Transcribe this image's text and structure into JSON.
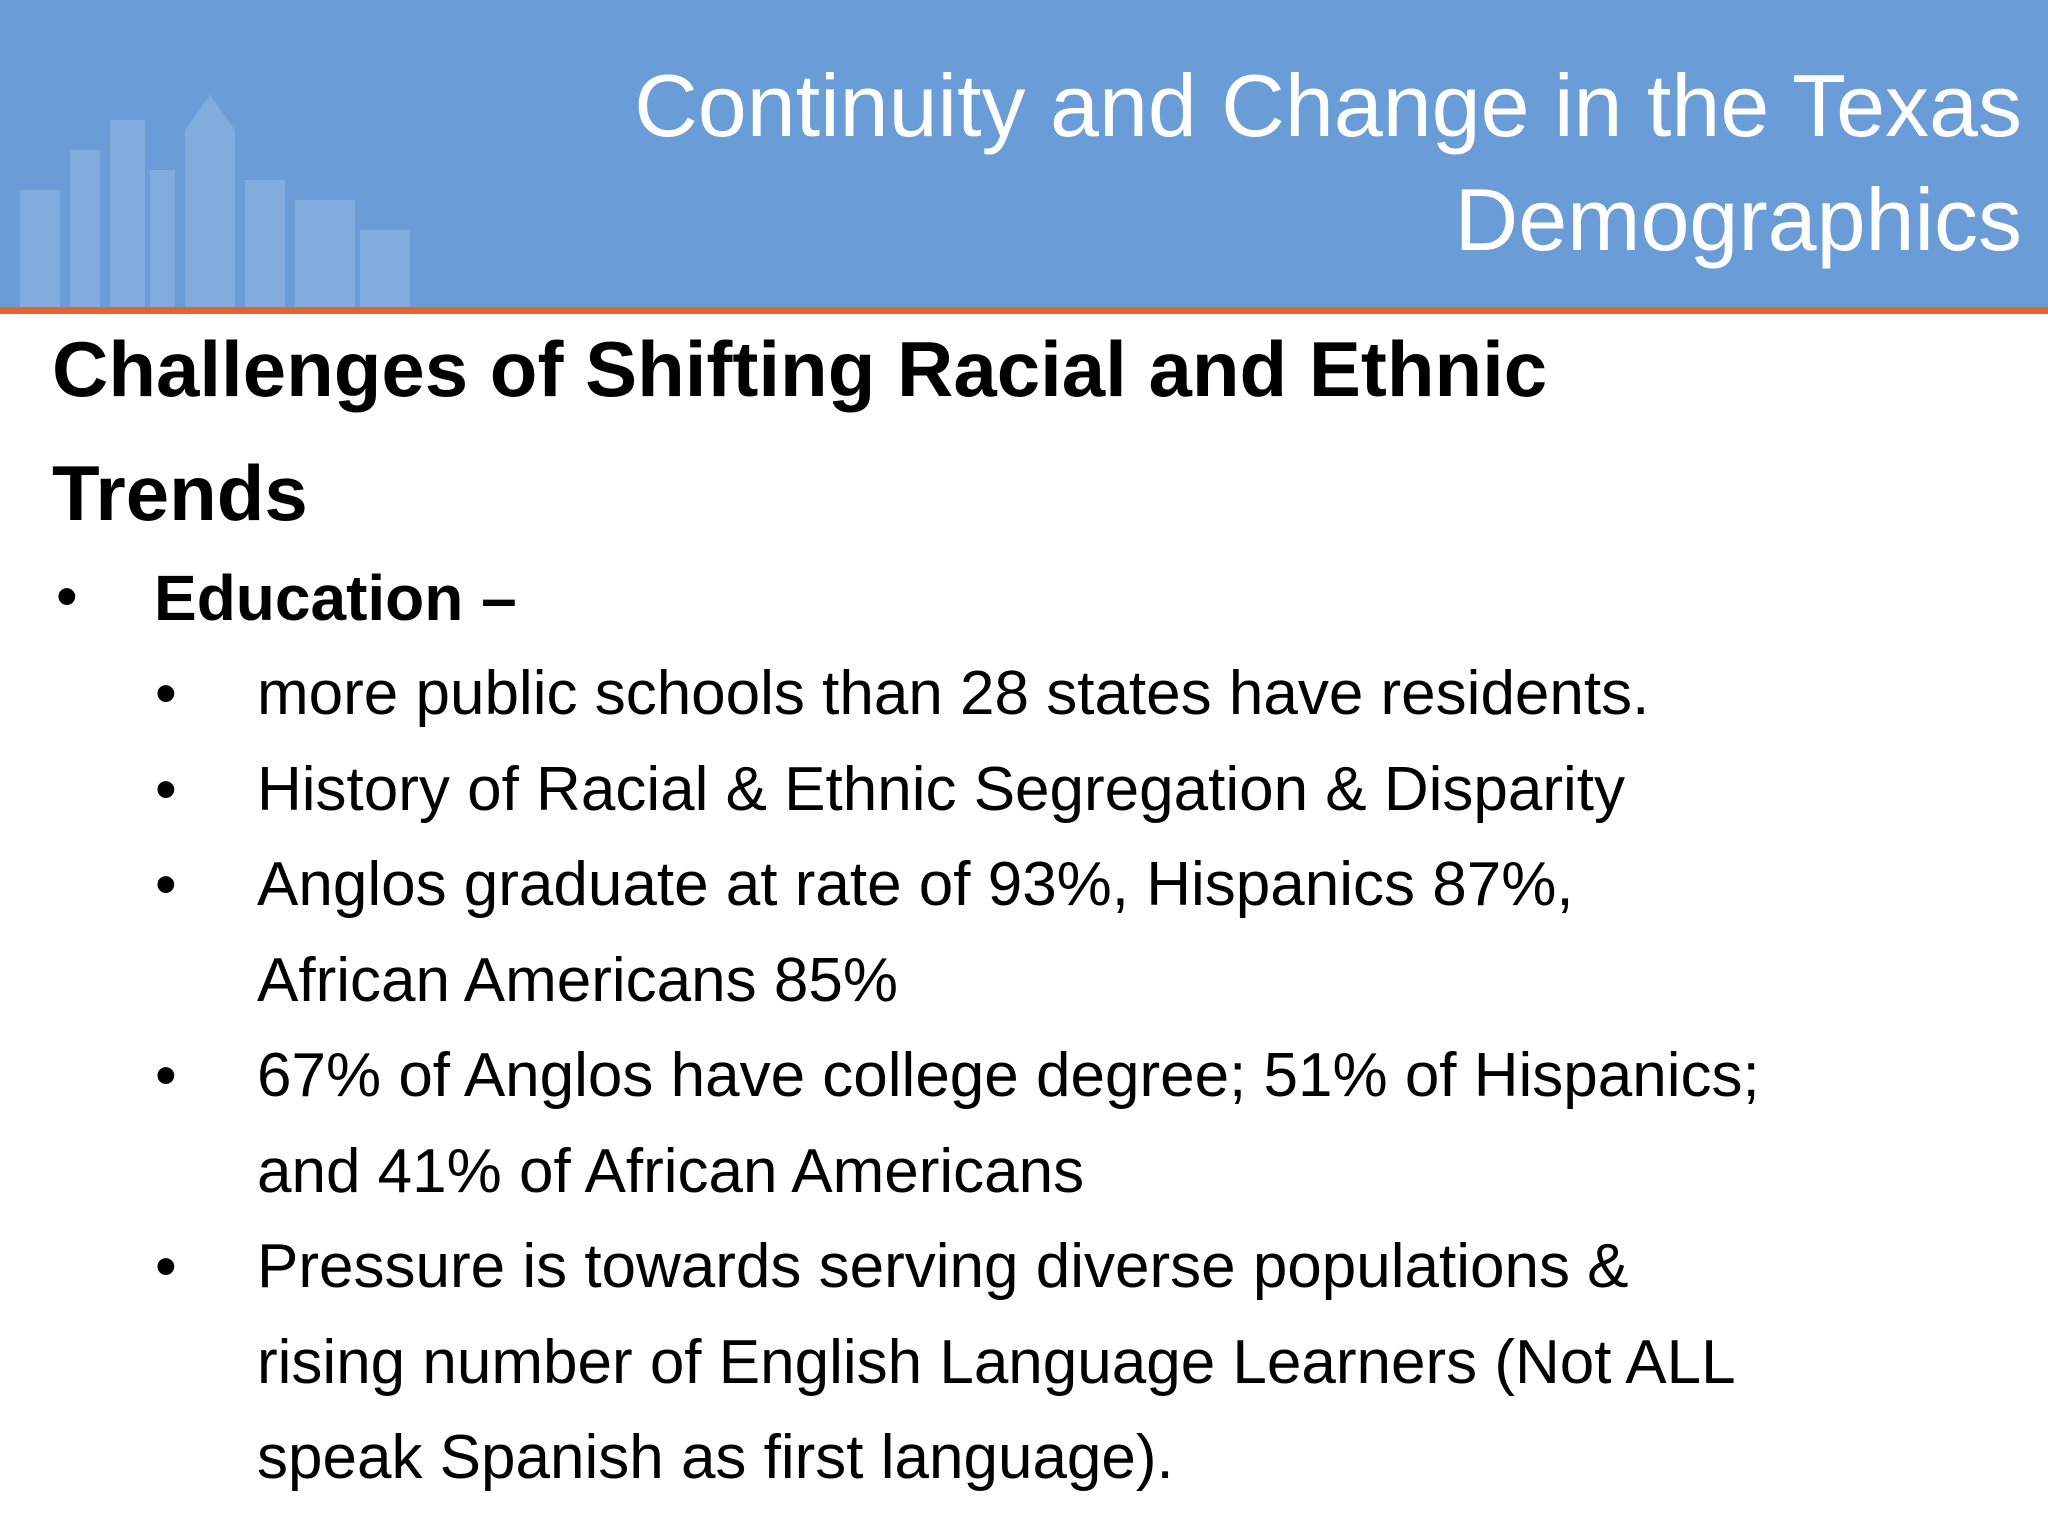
{
  "header": {
    "title_lines": [
      "Continuity and Change in the Texas",
      "Demographics"
    ]
  },
  "heading_lines": [
    "Challenges of Shifting Racial and Ethnic",
    "Trends"
  ],
  "bullet": {
    "label": "Education –",
    "items": [
      [
        "more public schools than 28 states have residents."
      ],
      [
        "History of Racial & Ethnic Segregation & Disparity"
      ],
      [
        "Anglos graduate at rate of 93%, Hispanics 87%,",
        "African Americans 85%"
      ],
      [
        "67% of Anglos have college degree; 51% of Hispanics;",
        "and 41% of African Americans"
      ],
      [
        "Pressure is towards serving diverse populations &",
        "rising number of English Language Learners (Not ALL",
        "speak Spanish as first language)."
      ]
    ]
  }
}
